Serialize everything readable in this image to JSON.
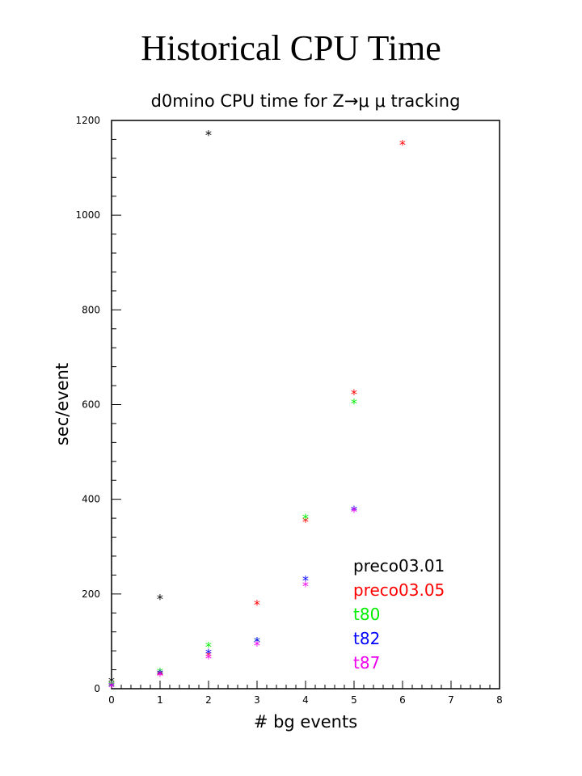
{
  "slide_title": "Historical CPU Time",
  "chart_data": {
    "type": "scatter",
    "title": "d0mino CPU time for Z→μ μ tracking",
    "xlabel": "# bg events",
    "ylabel": "sec/event",
    "xlim": [
      0,
      8
    ],
    "ylim": [
      0,
      1200
    ],
    "x_ticks": [
      0,
      1,
      2,
      3,
      4,
      5,
      6,
      7,
      8
    ],
    "y_ticks": [
      0,
      200,
      400,
      600,
      800,
      1000,
      1200
    ],
    "grid": false,
    "legend_position": "bottom-right",
    "marker": "*",
    "series": [
      {
        "name": "preco03.01",
        "color": "#000000",
        "points": [
          [
            0,
            15
          ],
          [
            1,
            190
          ],
          [
            2,
            1170
          ]
        ]
      },
      {
        "name": "preco03.05",
        "color": "#ff0000",
        "points": [
          [
            0,
            8
          ],
          [
            1,
            30
          ],
          [
            2,
            70
          ],
          [
            3,
            178
          ],
          [
            4,
            353
          ],
          [
            5,
            623
          ],
          [
            6,
            1150
          ]
        ]
      },
      {
        "name": "t80",
        "color": "#00ee00",
        "points": [
          [
            0,
            8
          ],
          [
            1,
            35
          ],
          [
            2,
            90
          ],
          [
            3,
            100
          ],
          [
            4,
            360
          ],
          [
            5,
            603
          ]
        ]
      },
      {
        "name": "t82",
        "color": "#0000ff",
        "points": [
          [
            0,
            5
          ],
          [
            1,
            32
          ],
          [
            2,
            75
          ],
          [
            3,
            100
          ],
          [
            4,
            230
          ],
          [
            5,
            377
          ]
        ]
      },
      {
        "name": "t87",
        "color": "#ee00ee",
        "points": [
          [
            0,
            4
          ],
          [
            1,
            28
          ],
          [
            2,
            65
          ],
          [
            3,
            92
          ],
          [
            4,
            218
          ],
          [
            5,
            375
          ]
        ]
      }
    ]
  }
}
